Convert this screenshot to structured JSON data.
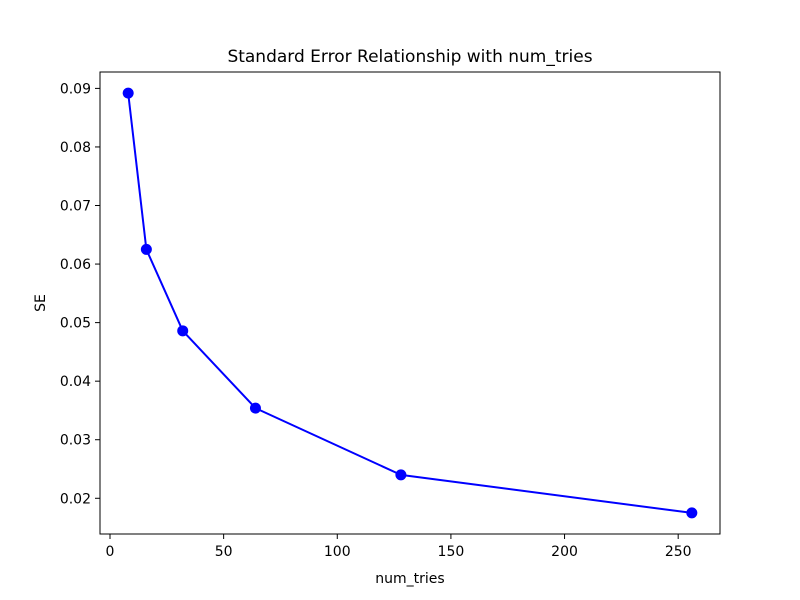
{
  "chart_data": {
    "type": "line",
    "title": "Standard Error Relationship with num_tries",
    "xlabel": "num_tries",
    "ylabel": "SE",
    "x": [
      8,
      16,
      32,
      64,
      128,
      256
    ],
    "y": [
      0.0892,
      0.0625,
      0.0486,
      0.0354,
      0.024,
      0.0175
    ],
    "x_ticks": [
      0,
      50,
      100,
      150,
      200,
      250
    ],
    "y_ticks": [
      0.02,
      0.03,
      0.04,
      0.05,
      0.06,
      0.07,
      0.08,
      0.09
    ],
    "xlim": [
      -4.4,
      268.4
    ],
    "ylim": [
      0.0139,
      0.0928
    ],
    "line_color": "#0000ff",
    "marker": "circle",
    "grid": false,
    "legend": null,
    "axis_color": "#000000",
    "background_color": "#ffffff"
  }
}
